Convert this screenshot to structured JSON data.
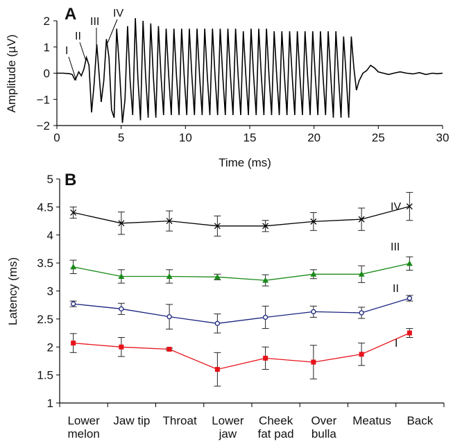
{
  "chart_data": [
    {
      "panel_label": "A",
      "type": "line",
      "xlabel": "Time (ms)",
      "ylabel": "Amplitude (µV)",
      "xlim": [
        0,
        30
      ],
      "ylim": [
        -2,
        2
      ],
      "xticks": [
        "0",
        "5",
        "10",
        "15",
        "20",
        "25",
        "30"
      ],
      "yticks": [
        "−2",
        "−1",
        "0",
        "1",
        "2"
      ],
      "grid": false,
      "peak_labels": [
        "I",
        "II",
        "III",
        "IV"
      ],
      "series": [
        {
          "x": [
            0,
            0.5,
            1.0,
            1.2,
            1.4,
            1.5,
            1.7,
            1.9,
            2.1,
            2.3,
            2.5,
            2.7,
            2.9,
            3.1,
            3.25,
            3.45,
            3.65,
            3.85,
            4.05,
            4.25,
            4.45,
            4.65,
            4.85,
            5.1,
            5.3,
            5.5,
            5.7,
            5.9,
            6.1,
            6.3,
            6.5,
            6.7,
            6.9,
            7.1,
            7.3,
            7.5,
            7.7,
            7.9,
            8.1,
            8.3,
            8.5,
            8.7,
            8.9,
            9.1,
            9.3,
            9.5,
            9.7,
            9.9,
            10.1,
            10.3,
            10.5,
            10.7,
            10.9,
            11.1,
            11.3,
            11.5,
            11.7,
            11.9,
            12.1,
            12.3,
            12.5,
            12.7,
            12.9,
            13.1,
            13.3,
            13.5,
            13.7,
            13.9,
            14.1,
            14.3,
            14.5,
            14.7,
            14.9,
            15.1,
            15.3,
            15.5,
            15.7,
            15.9,
            16.1,
            16.3,
            16.5,
            16.7,
            16.9,
            17.1,
            17.3,
            17.5,
            17.7,
            17.9,
            18.1,
            18.3,
            18.5,
            18.7,
            18.9,
            19.1,
            19.3,
            19.5,
            19.7,
            19.9,
            20.1,
            20.3,
            20.5,
            20.7,
            20.9,
            21.1,
            21.3,
            21.5,
            21.7,
            21.9,
            22.1,
            22.3,
            22.5,
            22.7,
            22.9,
            23.1,
            23.3,
            23.5,
            23.8,
            24.1,
            24.4,
            24.7,
            25.0,
            25.4,
            25.8,
            26.2,
            26.7,
            27.2,
            27.7,
            28.2,
            28.7,
            29.2,
            29.6,
            30.0
          ],
          "y": [
            0,
            0,
            -0.02,
            -0.05,
            -0.25,
            -0.18,
            0.05,
            -0.1,
            0.15,
            0.6,
            0.3,
            -1.5,
            -0.4,
            1.1,
            0.2,
            -1.1,
            -0.3,
            1.3,
            0.6,
            -1.4,
            -1.7,
            1.7,
            0.3,
            -1.9,
            -1.0,
            1.8,
            -0.3,
            -1.6,
            2.1,
            -0.2,
            -1.8,
            2.0,
            -0.1,
            -1.7,
            1.9,
            -0.1,
            -1.7,
            1.8,
            -0.1,
            -1.6,
            1.7,
            -0.1,
            -1.6,
            1.7,
            -0.1,
            -1.6,
            1.7,
            -0.1,
            -1.6,
            1.7,
            -0.1,
            -1.6,
            1.7,
            -0.1,
            -1.6,
            1.7,
            -0.1,
            -1.6,
            1.7,
            -0.1,
            -1.6,
            1.7,
            -0.1,
            -1.6,
            1.7,
            -0.1,
            -1.6,
            1.7,
            -0.1,
            -1.6,
            1.6,
            -0.1,
            -1.6,
            1.7,
            -0.1,
            -1.6,
            1.7,
            -0.1,
            -1.6,
            1.7,
            -0.1,
            -1.6,
            1.6,
            -0.1,
            -1.6,
            1.6,
            -0.1,
            -1.6,
            1.6,
            -0.1,
            -1.6,
            1.6,
            -0.1,
            -1.6,
            1.6,
            -0.1,
            -1.6,
            1.6,
            -0.1,
            -1.6,
            1.6,
            -0.1,
            -1.6,
            1.6,
            -0.1,
            -1.7,
            1.6,
            -0.1,
            -1.7,
            1.4,
            -0.1,
            -1.7,
            1.4,
            0.2,
            -0.65,
            -0.3,
            0.0,
            0.1,
            0.3,
            0.2,
            0.05,
            0.0,
            -0.05,
            0.0,
            0.05,
            0.0,
            -0.03,
            0.02,
            -0.05,
            0.0,
            -0.02,
            0.0
          ]
        }
      ]
    },
    {
      "panel_label": "B",
      "type": "line",
      "xlabel": "",
      "ylabel": "Latency (ms)",
      "ylim": [
        1,
        5
      ],
      "yticks": [
        "1",
        "1.5",
        "2",
        "2.5",
        "3",
        "3.5",
        "4",
        "4.5",
        "5"
      ],
      "grid": false,
      "categories": [
        [
          "Lower",
          "melon"
        ],
        [
          "Jaw tip"
        ],
        [
          "Throat"
        ],
        [
          "Lower",
          "jaw"
        ],
        [
          "Cheek",
          "fat pad"
        ],
        [
          "Over",
          "bulla"
        ],
        [
          "Meatus"
        ],
        [
          "Back"
        ]
      ],
      "series": [
        {
          "name": "IV",
          "color": "#000000",
          "marker": "x",
          "values": [
            4.4,
            4.21,
            4.25,
            4.16,
            4.16,
            4.24,
            4.28,
            4.51
          ],
          "errors": [
            0.1,
            0.2,
            0.18,
            0.18,
            0.1,
            0.16,
            0.2,
            0.25
          ]
        },
        {
          "name": "III",
          "color": "#1a8a1a",
          "marker": "triangle",
          "values": [
            3.43,
            3.26,
            3.26,
            3.25,
            3.19,
            3.3,
            3.3,
            3.49
          ],
          "errors": [
            0.12,
            0.12,
            0.12,
            0.05,
            0.1,
            0.08,
            0.15,
            0.12
          ]
        },
        {
          "name": "II",
          "color": "#1a237e",
          "marker": "circle",
          "values": [
            2.77,
            2.68,
            2.54,
            2.42,
            2.53,
            2.63,
            2.61,
            2.87
          ],
          "errors": [
            0.05,
            0.1,
            0.22,
            0.17,
            0.2,
            0.1,
            0.1,
            0.05
          ]
        },
        {
          "name": "I",
          "color": "#e8131b",
          "marker": "square",
          "values": [
            2.07,
            2.0,
            1.96,
            1.6,
            1.8,
            1.73,
            1.87,
            2.25
          ],
          "errors": [
            0.17,
            0.17,
            0.02,
            0.3,
            0.2,
            0.3,
            0.2,
            0.08
          ]
        }
      ]
    }
  ]
}
